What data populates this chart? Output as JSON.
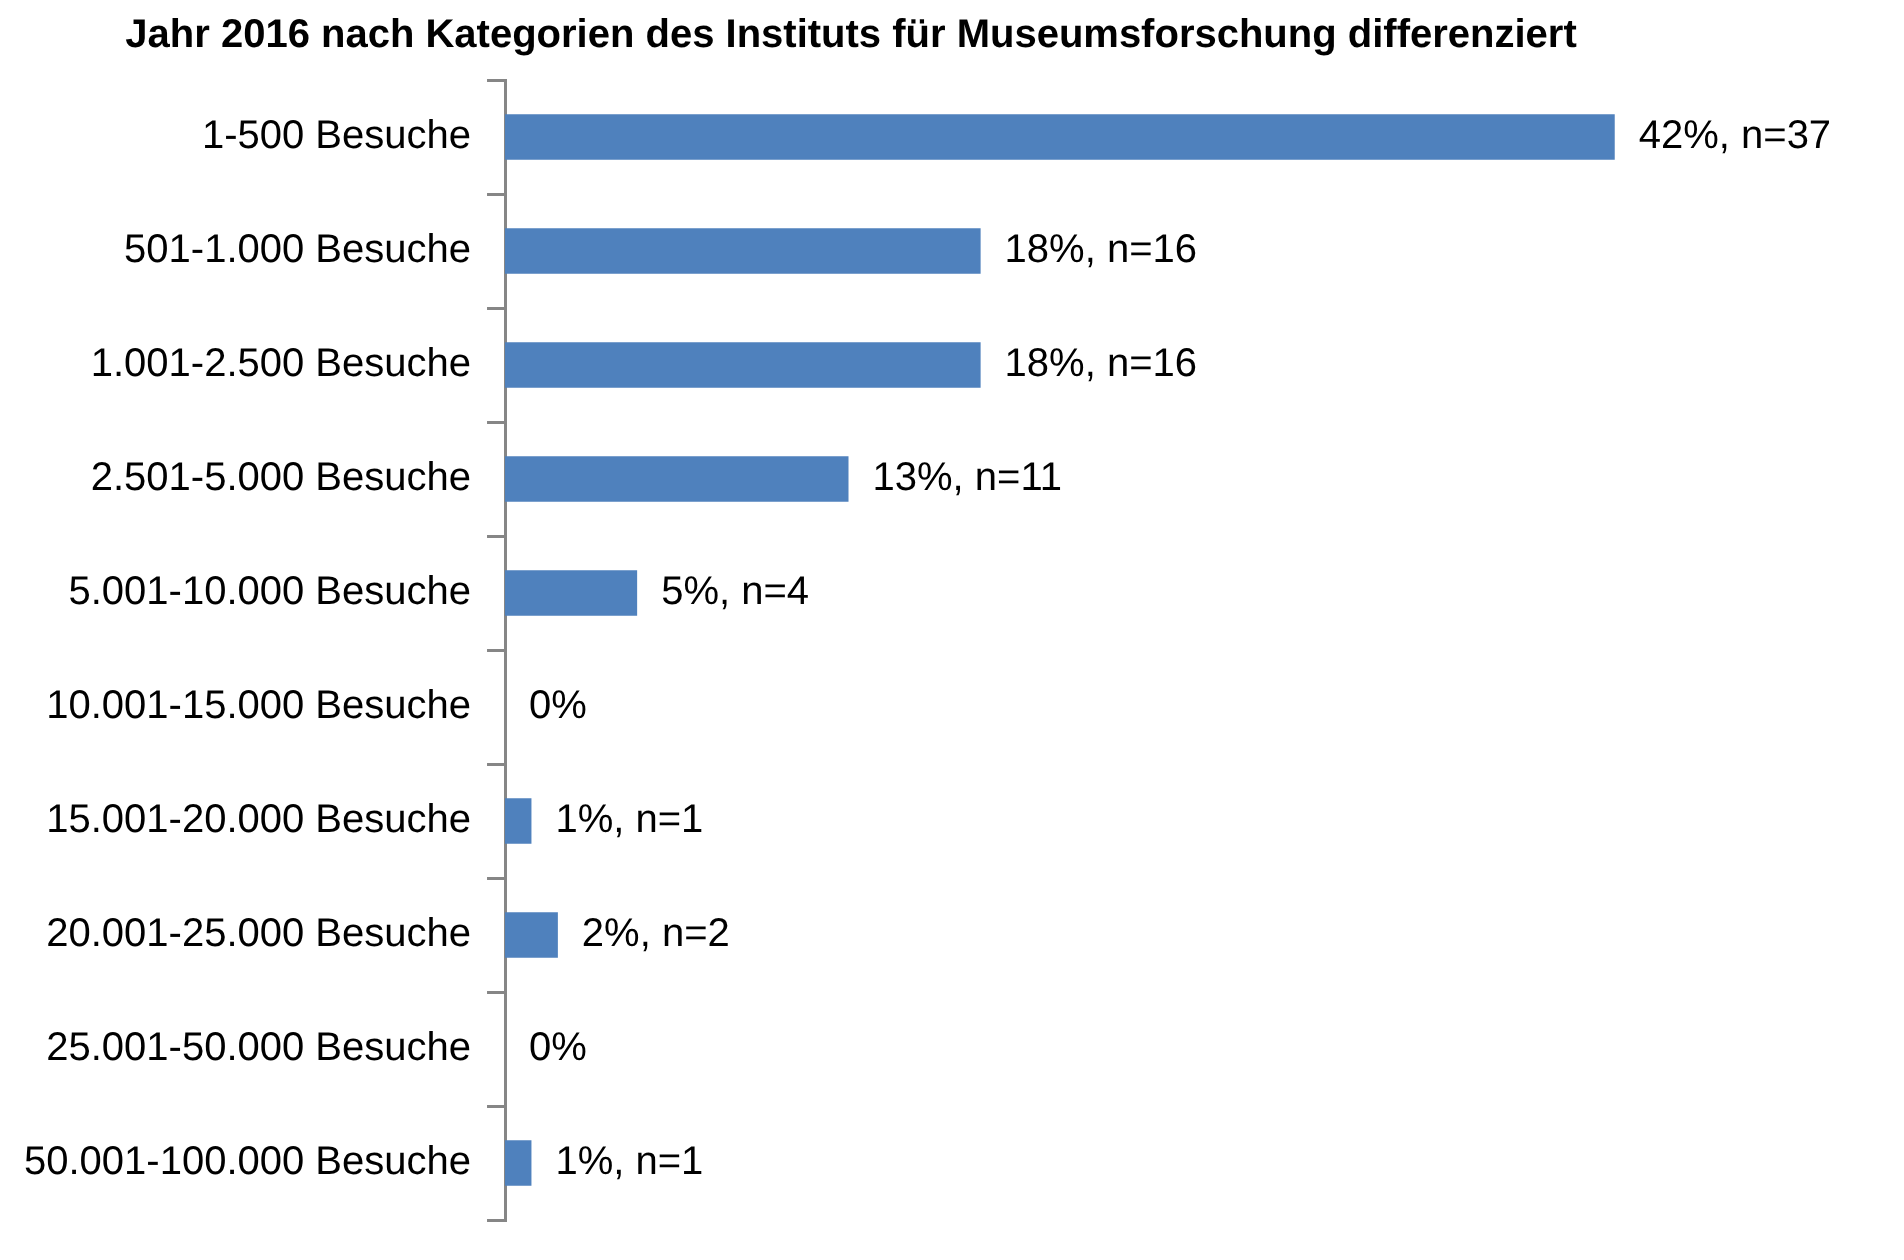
{
  "chart_data": {
    "type": "bar",
    "orientation": "horizontal",
    "title": "Jahr 2016 nach Kategorien des Instituts für Museumsforschung differenziert",
    "categories": [
      "1-500 Besuche",
      "501-1.000 Besuche",
      "1.001-2.500 Besuche",
      "2.501-5.000 Besuche",
      "5.001-10.000 Besuche",
      "10.001-15.000 Besuche",
      "15.001-20.000 Besuche",
      "20.001-25.000 Besuche",
      "25.001-50.000 Besuche",
      "50.001-100.000 Besuche"
    ],
    "values": [
      42,
      18,
      18,
      13,
      5,
      0,
      1,
      2,
      0,
      1
    ],
    "color": "#4f81bd",
    "value_labels": [
      "42%, n=37",
      "18%, n=16",
      "18%, n=16",
      "13%, n=11",
      "5%, n=4",
      "0%",
      "1%, n=1",
      "2%, n=2",
      "0%",
      "1%, n=1"
    ],
    "tick_labels": "y"
  }
}
